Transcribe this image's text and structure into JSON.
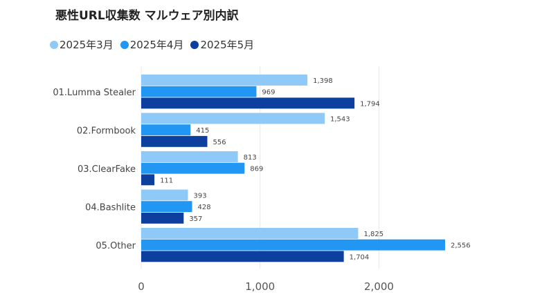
{
  "chart_data": {
    "type": "bar",
    "orientation": "horizontal",
    "title": "悪性URL収集数 マルウェア別内訳",
    "categories": [
      "01.Lumma Stealer",
      "02.Formbook",
      "03.ClearFake",
      "04.Bashlite",
      "05.Other"
    ],
    "series": [
      {
        "name": "2025年3月",
        "color": "#8fc9f7",
        "values": [
          1398,
          1543,
          813,
          393,
          1825
        ],
        "labels": [
          "1,398",
          "1,543",
          "813",
          "393",
          "1,825"
        ]
      },
      {
        "name": "2025年4月",
        "color": "#2196f3",
        "values": [
          969,
          415,
          869,
          428,
          2556
        ],
        "labels": [
          "969",
          "415",
          "869",
          "428",
          "2,556"
        ]
      },
      {
        "name": "2025年5月",
        "color": "#0d3f9e",
        "values": [
          1794,
          556,
          111,
          357,
          1704
        ],
        "labels": [
          "1,794",
          "556",
          "111",
          "357",
          "1,704"
        ]
      }
    ],
    "xlim": [
      0,
      2556
    ],
    "xticks": [
      0,
      1000,
      2000
    ],
    "xtick_labels": [
      "0",
      "1,000",
      "2,000"
    ],
    "grid": true,
    "legend_position": "top-left"
  }
}
